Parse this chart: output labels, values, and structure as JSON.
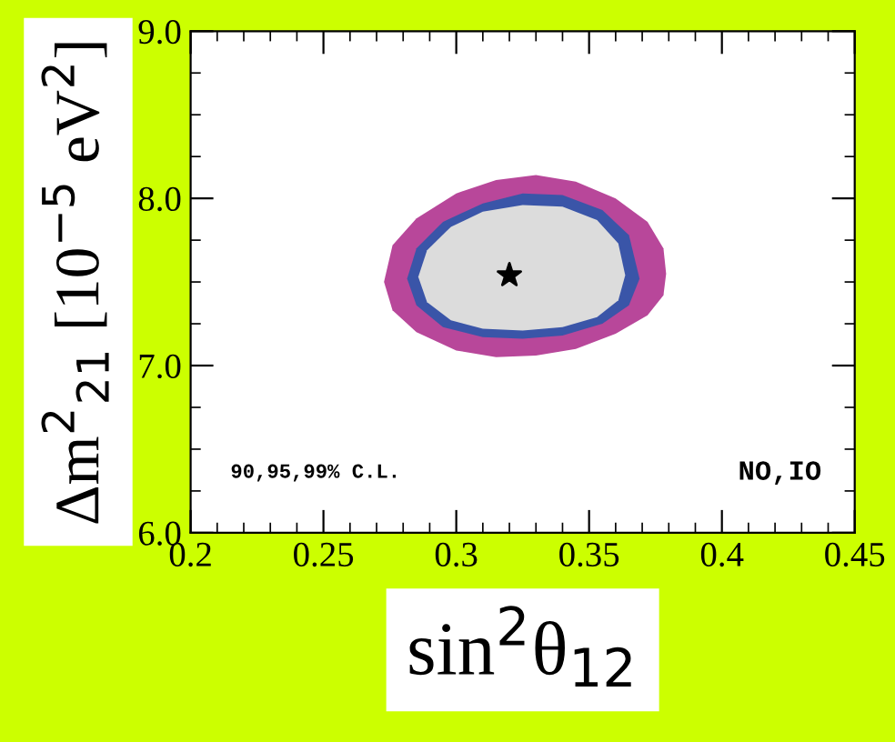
{
  "chart_data": {
    "type": "scatter",
    "xlabel": "sin$^{2}$θ$_{12}$",
    "ylabel": "Δm$^{2}$$_{21}$ [10$^{−5}$ eV$^{2}$]",
    "annotations": [
      "90,95,99% C.L.",
      "NO,IO"
    ],
    "xlim": [
      0.2,
      0.45
    ],
    "ylim": [
      6.0,
      9.0
    ],
    "xticks": [
      0.2,
      0.25,
      0.3,
      0.35,
      0.4,
      0.45
    ],
    "yticks": [
      {
        "value": 6.0,
        "label": "6.0"
      },
      {
        "value": 7.0,
        "label": "7.0"
      },
      {
        "value": 8.0,
        "label": "8.0"
      },
      {
        "value": 9.0,
        "label": "9.0"
      }
    ],
    "series": [
      {
        "type": "area",
        "color": "#b8479a",
        "x": [
          0.2728,
          0.276,
          0.285,
          0.3,
          0.315,
          0.33,
          0.345,
          0.36,
          0.372,
          0.378,
          0.379,
          0.378,
          0.372,
          0.36,
          0.345,
          0.33,
          0.315,
          0.3,
          0.285,
          0.276
        ],
        "values": [
          7.5,
          7.72,
          7.88,
          8.03,
          8.11,
          8.14,
          8.1,
          8.0,
          7.86,
          7.7,
          7.55,
          7.42,
          7.3,
          7.19,
          7.1,
          7.06,
          7.05,
          7.09,
          7.2,
          7.33
        ]
      },
      {
        "type": "area",
        "color": "#3a55a8",
        "x": [
          0.2815,
          0.285,
          0.295,
          0.31,
          0.325,
          0.34,
          0.355,
          0.365,
          0.369,
          0.365,
          0.355,
          0.34,
          0.325,
          0.31,
          0.295,
          0.285
        ],
        "values": [
          7.52,
          7.7,
          7.86,
          7.97,
          8.03,
          8.02,
          7.93,
          7.78,
          7.52,
          7.36,
          7.25,
          7.18,
          7.16,
          7.17,
          7.23,
          7.36
        ]
      },
      {
        "type": "area",
        "color": "#dcdcdc",
        "x": [
          0.2857,
          0.289,
          0.298,
          0.31,
          0.325,
          0.34,
          0.353,
          0.361,
          0.3636,
          0.361,
          0.353,
          0.34,
          0.325,
          0.31,
          0.298,
          0.289
        ],
        "values": [
          7.53,
          7.69,
          7.83,
          7.92,
          7.96,
          7.95,
          7.87,
          7.73,
          7.54,
          7.39,
          7.29,
          7.23,
          7.21,
          7.22,
          7.27,
          7.38
        ]
      },
      {
        "color": "#000000",
        "marker": "star",
        "x": [
          0.32
        ],
        "values": [
          7.54
        ]
      }
    ]
  }
}
